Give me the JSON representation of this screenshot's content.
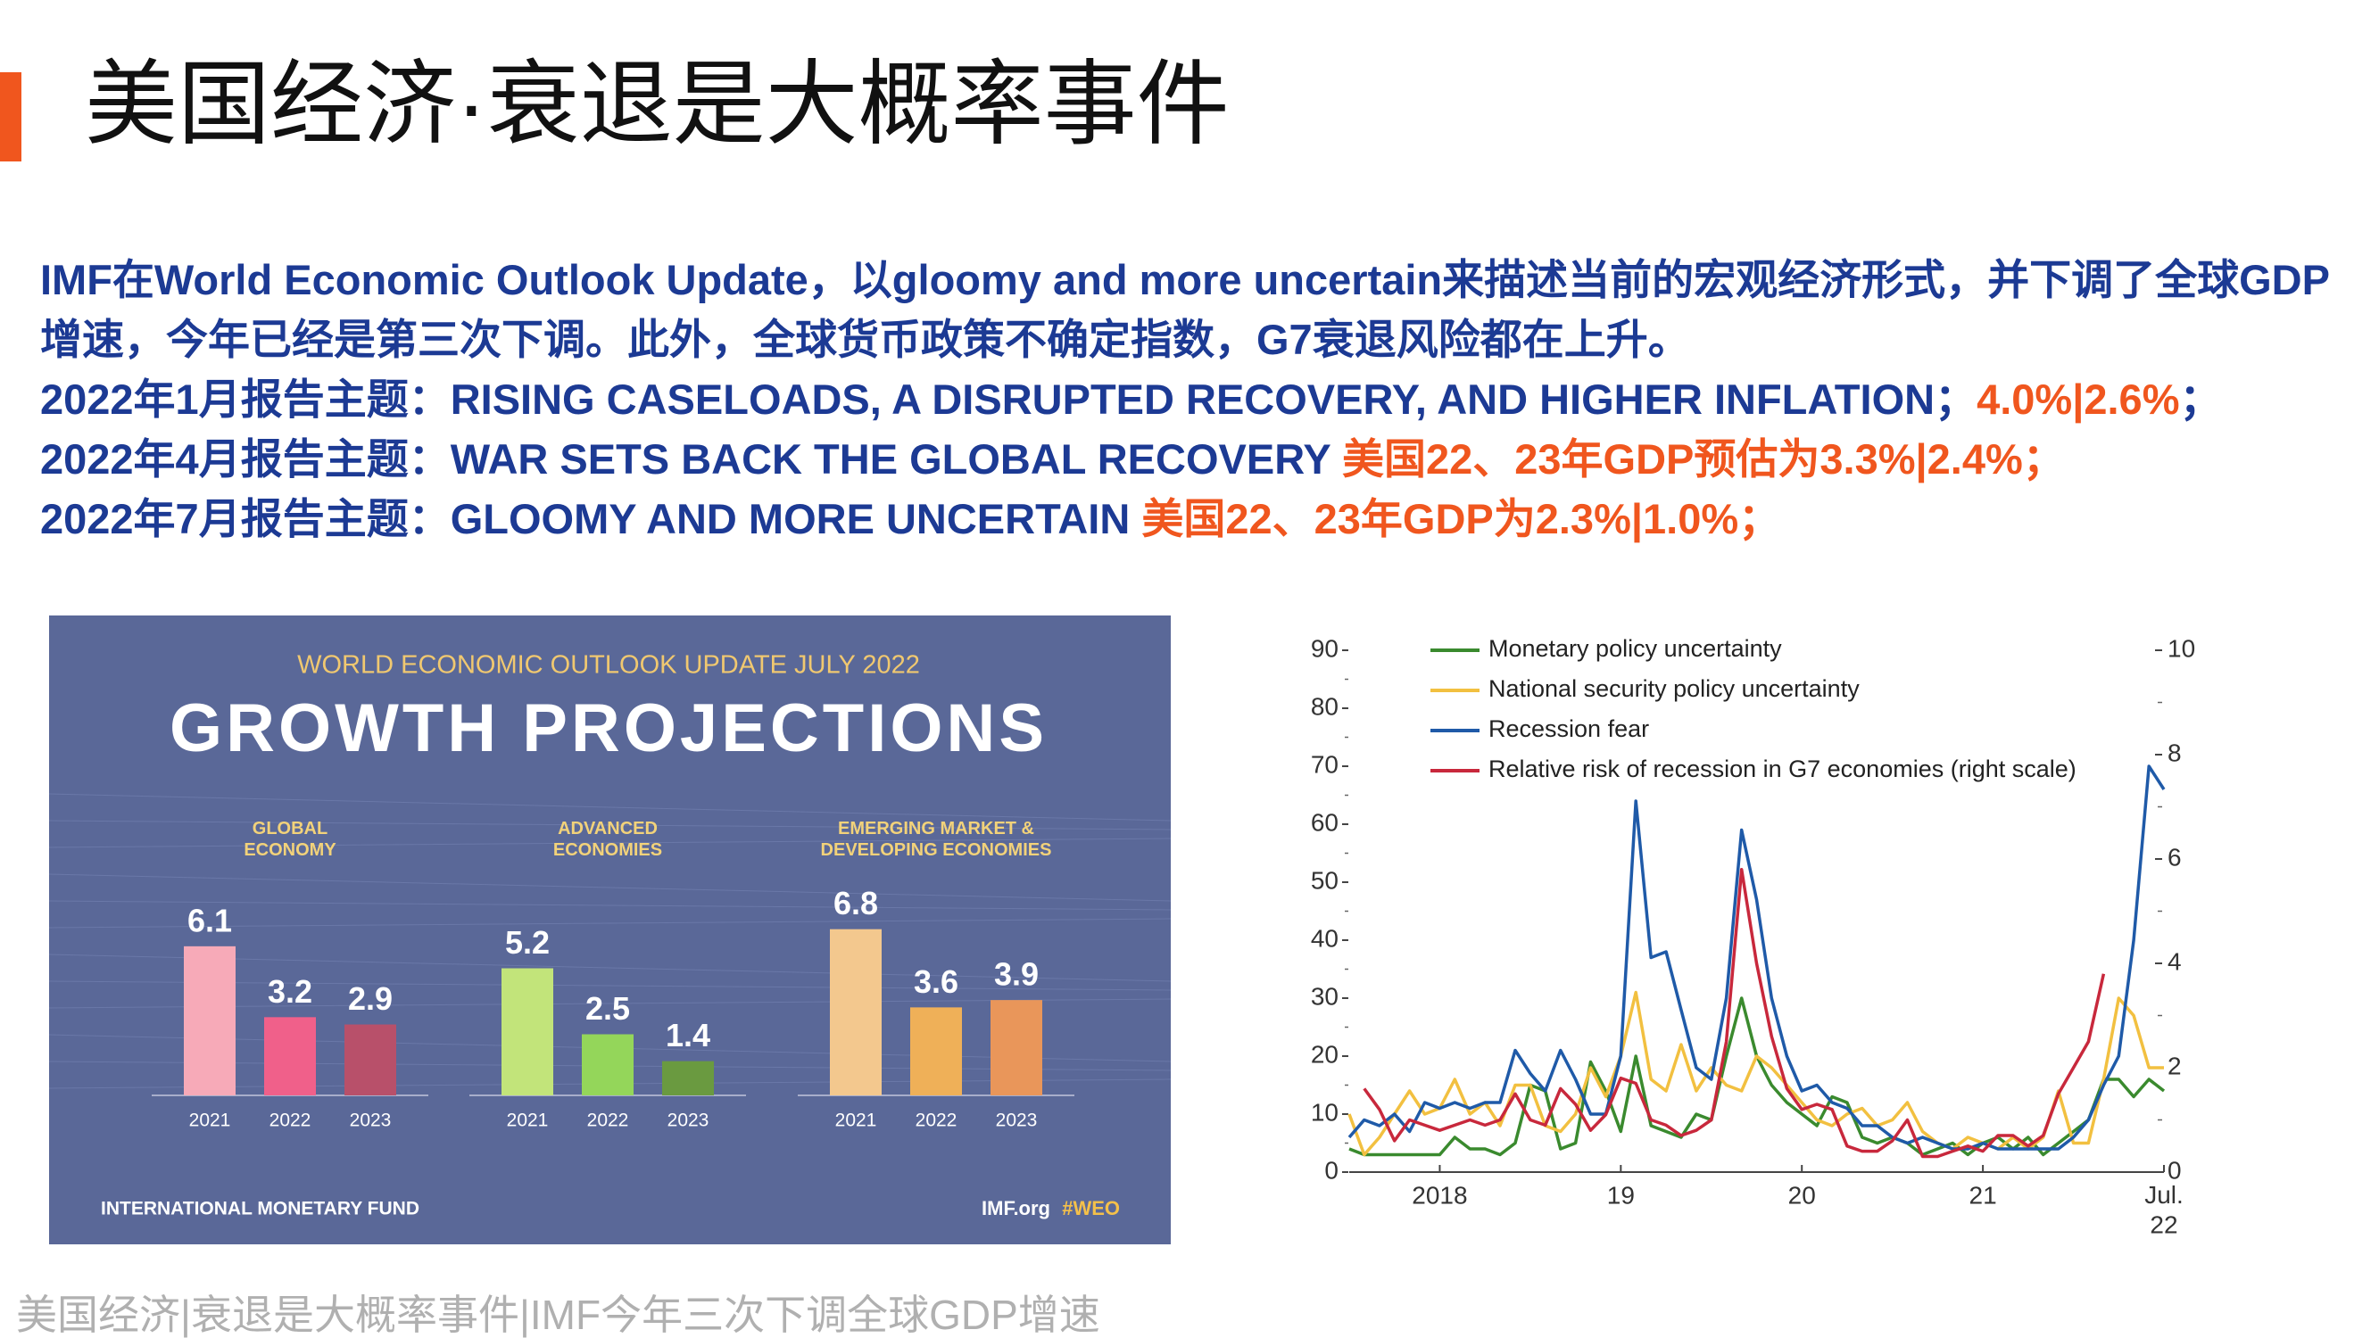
{
  "title": "美国经济·衰退是大概率事件",
  "paragraphs": [
    {
      "runs": [
        {
          "text": "IMF在World Economic Outlook Update，以gloomy and more uncertain来描述当前的宏观经济形式，并下调了全球GDP增速，今年已经是第三次下调。此外，全球货币政策不确定指数，G7衰退风险都在上升。",
          "color": "#1c3a94"
        }
      ]
    },
    {
      "runs": [
        {
          "text": "2022年1月报告主题：RISING CASELOADS, A DISRUPTED RECOVERY, AND HIGHER INFLATION；",
          "color": "#1c3a94"
        },
        {
          "text": "4.0%|2.6%",
          "color": "#f0561e"
        },
        {
          "text": "；",
          "color": "#1c3a94"
        }
      ]
    },
    {
      "runs": [
        {
          "text": "2022年4月报告主题：WAR SETS BACK THE GLOBAL RECOVERY ",
          "color": "#1c3a94"
        },
        {
          "text": "美国22、23年GDP预估为3.3%|2.4%；",
          "color": "#f0561e"
        }
      ]
    },
    {
      "runs": [
        {
          "text": "2022年7月报告主题：GLOOMY AND MORE UNCERTAIN ",
          "color": "#1c3a94"
        },
        {
          "text": "美国22、23年GDP为2.3%|1.0%；",
          "color": "#f0561e"
        }
      ]
    }
  ],
  "footer": "美国经济|衰退是大概率事件|IMF今年三次下调全球GDP增速",
  "chart_data": [
    {
      "type": "bar",
      "subtitle": "WORLD ECONOMIC OUTLOOK UPDATE JULY 2022",
      "title": "GROWTH PROJECTIONS",
      "categories": [
        "2021",
        "2022",
        "2023"
      ],
      "series": [
        {
          "name": "GLOBAL\nECONOMY",
          "colors": [
            "#f7aab8",
            "#f0608a",
            "#b8506a"
          ],
          "values": [
            6.1,
            3.2,
            2.9
          ]
        },
        {
          "name": "ADVANCED\nECONOMIES",
          "colors": [
            "#c2e47a",
            "#94d65a",
            "#6a9a40"
          ],
          "values": [
            5.2,
            2.5,
            1.4
          ]
        },
        {
          "name": "EMERGING MARKET &\nDEVELOPING ECONOMIES",
          "colors": [
            "#f3c88e",
            "#efb058",
            "#e9965a"
          ],
          "values": [
            6.8,
            3.6,
            3.9
          ]
        }
      ],
      "source": "INTERNATIONAL MONETARY FUND",
      "site": "IMF.org",
      "tag": "#WEO",
      "background": "#5a6898"
    },
    {
      "type": "line",
      "legend": "upper left",
      "x": [
        2018,
        2018.083,
        2018.167,
        2018.25,
        2018.333,
        2018.417,
        2018.5,
        2018.583,
        2018.667,
        2018.75,
        2018.833,
        2018.917,
        2019,
        2019.083,
        2019.167,
        2019.25,
        2019.333,
        2019.417,
        2019.5,
        2019.583,
        2019.667,
        2019.75,
        2019.833,
        2019.917,
        2020,
        2020.083,
        2020.167,
        2020.25,
        2020.333,
        2020.417,
        2020.5,
        2020.583,
        2020.667,
        2020.75,
        2020.833,
        2020.917,
        2021,
        2021.083,
        2021.167,
        2021.25,
        2021.333,
        2021.417,
        2021.5,
        2021.583,
        2021.667,
        2021.75,
        2021.833,
        2021.917,
        2022,
        2022.083,
        2022.167,
        2022.25,
        2022.333,
        2022.417,
        2022.5
      ],
      "xlim": [
        2018,
        2022.5
      ],
      "xticks": [
        {
          "value": 2018.5,
          "label": "2018"
        },
        {
          "value": 2019.5,
          "label": "19"
        },
        {
          "value": 2020.5,
          "label": "20"
        },
        {
          "value": 2021.5,
          "label": "21"
        },
        {
          "value": 2022.5,
          "label": "Jul.\n22"
        }
      ],
      "ylim": [
        0,
        90
      ],
      "yticks": [
        0,
        10,
        20,
        30,
        40,
        50,
        60,
        70,
        80,
        90
      ],
      "y2lim": [
        0,
        10
      ],
      "y2ticks": [
        0,
        2,
        4,
        6,
        8,
        10
      ],
      "series": [
        {
          "name": "Monetary policy uncertainty",
          "color": "#3a8a2e",
          "values": [
            4,
            3,
            3,
            3,
            3,
            3,
            3,
            6,
            4,
            4,
            3,
            5,
            15,
            14,
            4,
            5,
            19,
            14,
            7,
            20,
            8,
            7,
            6,
            10,
            9,
            20,
            30,
            20,
            15,
            12,
            10,
            8,
            13,
            12,
            6,
            5,
            6,
            5,
            3,
            4,
            5,
            3,
            5,
            6,
            4,
            6,
            3,
            5,
            7,
            9,
            16,
            16,
            13,
            16,
            14
          ]
        },
        {
          "name": "National security policy uncertainty",
          "color": "#f2c040",
          "values": [
            10,
            3,
            6,
            10,
            14,
            10,
            11,
            16,
            10,
            12,
            8,
            15,
            15,
            8,
            7,
            10,
            18,
            13,
            20,
            31,
            16,
            14,
            22,
            14,
            18,
            15,
            14,
            20,
            18,
            15,
            12,
            9,
            8,
            10,
            11,
            8,
            9,
            12,
            7,
            5,
            4,
            6,
            5,
            4,
            6,
            4,
            6,
            14,
            5,
            5,
            16,
            30,
            27,
            18,
            18
          ]
        },
        {
          "name": "Recession fear",
          "color": "#1f5aa8",
          "values": [
            6,
            9,
            8,
            10,
            7,
            12,
            11,
            12,
            11,
            12,
            12,
            21,
            17,
            14,
            21,
            16,
            10,
            10,
            20,
            64,
            37,
            38,
            28,
            18,
            16,
            30,
            59,
            47,
            30,
            20,
            14,
            15,
            12,
            11,
            8,
            8,
            6,
            5,
            6,
            5,
            4,
            4,
            5,
            4,
            4,
            4,
            4,
            4,
            6,
            9,
            15,
            20,
            40,
            70,
            66
          ]
        },
        {
          "name": "Relative risk of recession in G7 economies (right scale)",
          "color": "#c8283c",
          "axis": "y2",
          "values": [
            null,
            1.6,
            1.2,
            0.6,
            1,
            0.9,
            0.8,
            0.9,
            1,
            0.9,
            1,
            1.5,
            1,
            0.9,
            1.6,
            1.3,
            0.8,
            1.1,
            1.8,
            1.7,
            1,
            0.9,
            0.7,
            0.8,
            1,
            2.5,
            5.8,
            4,
            2.6,
            1.6,
            1.2,
            1.3,
            1.2,
            0.5,
            0.4,
            0.4,
            0.6,
            1,
            0.3,
            0.3,
            0.4,
            0.5,
            0.4,
            0.7,
            0.7,
            0.5,
            0.7,
            1.5,
            2,
            2.5,
            3.8,
            null,
            null,
            null,
            null
          ]
        }
      ]
    }
  ]
}
